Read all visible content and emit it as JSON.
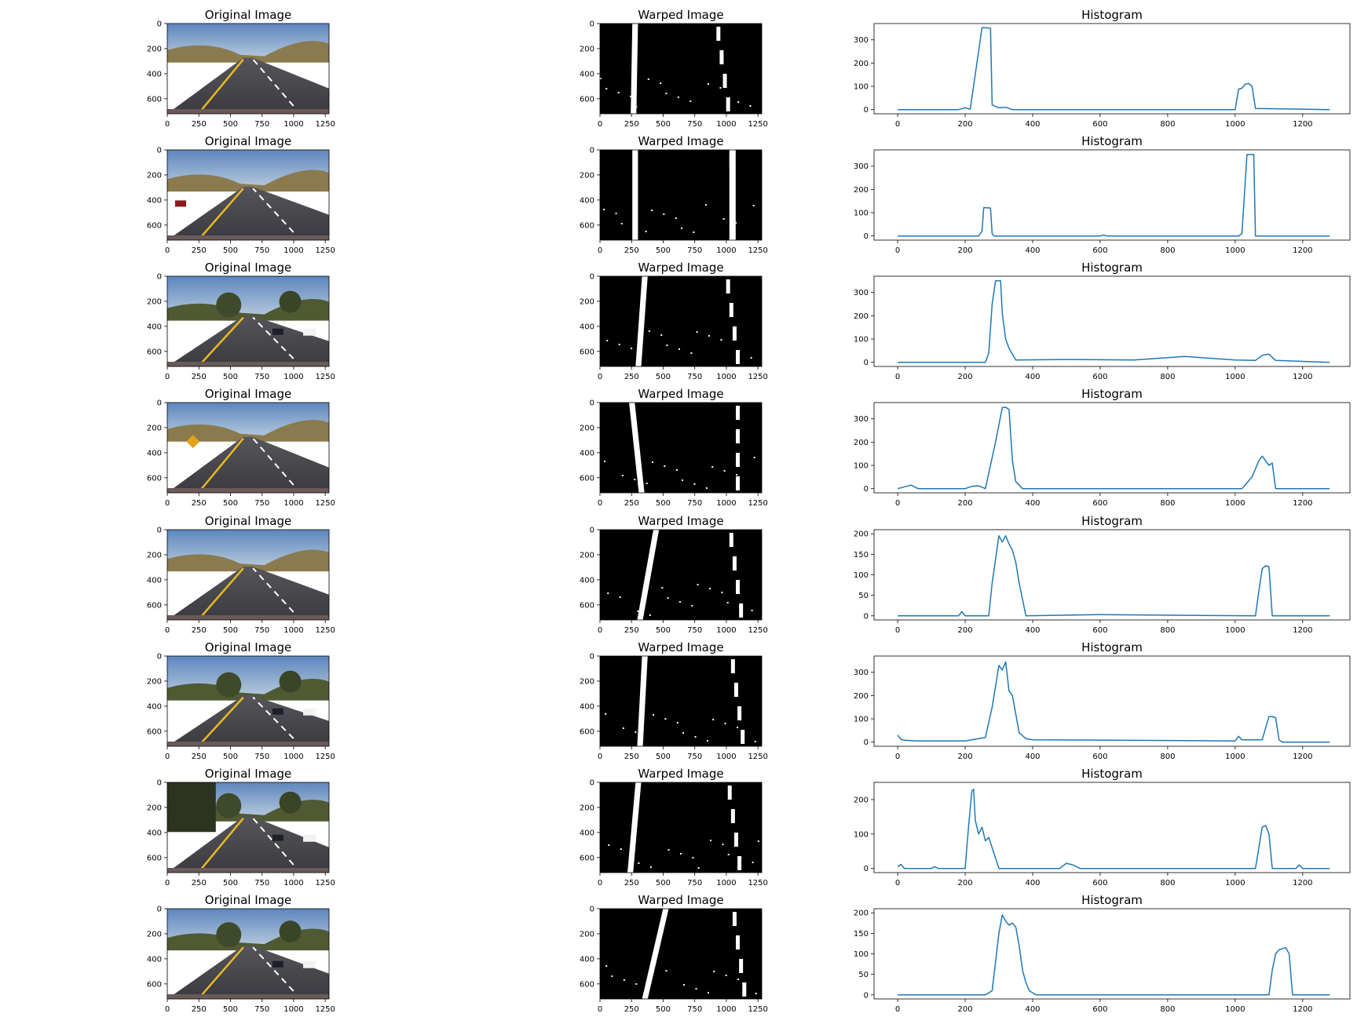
{
  "figure": {
    "columns": [
      {
        "title": "Original Image"
      },
      {
        "title": "Warped Image"
      },
      {
        "title": "Histogram"
      }
    ],
    "image_x_ticks": [
      "0",
      "250",
      "500",
      "750",
      "1000",
      "1250"
    ],
    "image_y_ticks": [
      "0",
      "200",
      "400",
      "600"
    ],
    "colors": {
      "line": "#1f77b4",
      "sky": "#7fa3cf",
      "road": "#4a4a50",
      "lane_yellow": "#e8b923"
    }
  },
  "chart_data": [
    {
      "type": "line",
      "title": "Histogram",
      "row": 1,
      "xlim": [
        -70,
        1340
      ],
      "ylim": [
        -18,
        370
      ],
      "xticks": [
        0,
        200,
        400,
        600,
        800,
        1000,
        1200
      ],
      "yticks": [
        0,
        100,
        200,
        300
      ],
      "series": [
        {
          "x": [
            0,
            180,
            200,
            215,
            250,
            255,
            275,
            280,
            300,
            320,
            340,
            1000,
            1010,
            1020,
            1030,
            1040,
            1050,
            1060,
            1280
          ],
          "y": [
            0,
            0,
            8,
            2,
            352,
            352,
            350,
            20,
            8,
            10,
            0,
            0,
            88,
            92,
            110,
            112,
            100,
            5,
            0
          ]
        }
      ]
    },
    {
      "type": "line",
      "title": "Histogram",
      "row": 2,
      "xlim": [
        -70,
        1340
      ],
      "ylim": [
        -18,
        370
      ],
      "xticks": [
        0,
        200,
        400,
        600,
        800,
        1000,
        1200
      ],
      "yticks": [
        0,
        100,
        200,
        300
      ],
      "series": [
        {
          "x": [
            0,
            240,
            250,
            255,
            275,
            280,
            285,
            600,
            610,
            620,
            1010,
            1020,
            1030,
            1035,
            1055,
            1060,
            1280
          ],
          "y": [
            0,
            0,
            20,
            122,
            120,
            10,
            0,
            0,
            4,
            0,
            0,
            10,
            240,
            350,
            350,
            0,
            0
          ],
          "raw": true
        }
      ]
    },
    {
      "type": "line",
      "title": "Histogram",
      "row": 3,
      "xlim": [
        -70,
        1340
      ],
      "ylim": [
        -18,
        370
      ],
      "xticks": [
        0,
        200,
        400,
        600,
        800,
        1000,
        1200
      ],
      "yticks": [
        0,
        100,
        200,
        300
      ],
      "series": [
        {
          "x": [
            0,
            260,
            270,
            280,
            290,
            305,
            310,
            320,
            330,
            350,
            500,
            700,
            850,
            1000,
            1060,
            1080,
            1100,
            1120,
            1280
          ],
          "y": [
            0,
            0,
            40,
            250,
            350,
            350,
            210,
            100,
            60,
            10,
            12,
            10,
            25,
            10,
            8,
            30,
            35,
            8,
            0
          ]
        }
      ]
    },
    {
      "type": "line",
      "title": "Histogram",
      "row": 4,
      "xlim": [
        -70,
        1340
      ],
      "ylim": [
        -18,
        370
      ],
      "xticks": [
        0,
        200,
        400,
        600,
        800,
        1000,
        1200
      ],
      "yticks": [
        0,
        100,
        200,
        300
      ],
      "series": [
        {
          "x": [
            0,
            40,
            60,
            200,
            220,
            240,
            260,
            290,
            310,
            320,
            330,
            340,
            350,
            370,
            1020,
            1050,
            1070,
            1080,
            1100,
            1110,
            1120,
            1280
          ],
          "y": [
            0,
            15,
            0,
            0,
            10,
            12,
            0,
            200,
            348,
            350,
            340,
            120,
            30,
            0,
            0,
            50,
            120,
            140,
            100,
            110,
            0,
            0
          ]
        }
      ]
    },
    {
      "type": "line",
      "title": "Histogram",
      "row": 5,
      "xlim": [
        -70,
        1340
      ],
      "ylim": [
        -10,
        210
      ],
      "xticks": [
        0,
        200,
        400,
        600,
        800,
        1000,
        1200
      ],
      "yticks": [
        0,
        50,
        100,
        150,
        200
      ],
      "series": [
        {
          "x": [
            0,
            180,
            190,
            200,
            270,
            280,
            300,
            310,
            320,
            330,
            340,
            350,
            360,
            380,
            600,
            1060,
            1070,
            1080,
            1090,
            1100,
            1110,
            1280
          ],
          "y": [
            0,
            0,
            10,
            0,
            0,
            80,
            195,
            180,
            195,
            175,
            160,
            130,
            80,
            0,
            3,
            0,
            60,
            115,
            122,
            120,
            0,
            0
          ]
        }
      ]
    },
    {
      "type": "line",
      "title": "Histogram",
      "row": 6,
      "xlim": [
        -70,
        1340
      ],
      "ylim": [
        -18,
        370
      ],
      "xticks": [
        0,
        200,
        400,
        600,
        800,
        1000,
        1200
      ],
      "yticks": [
        0,
        100,
        200,
        300
      ],
      "series": [
        {
          "x": [
            0,
            10,
            20,
            60,
            200,
            260,
            280,
            300,
            310,
            320,
            330,
            340,
            350,
            360,
            380,
            400,
            1000,
            1010,
            1020,
            1080,
            1100,
            1110,
            1120,
            1130,
            1140,
            1280
          ],
          "y": [
            30,
            12,
            8,
            5,
            5,
            20,
            150,
            330,
            310,
            345,
            220,
            200,
            120,
            40,
            15,
            10,
            5,
            25,
            10,
            10,
            110,
            110,
            105,
            10,
            0,
            0
          ]
        }
      ]
    },
    {
      "type": "line",
      "title": "Histogram",
      "row": 7,
      "xlim": [
        -70,
        1340
      ],
      "ylim": [
        -12,
        250
      ],
      "xticks": [
        0,
        200,
        400,
        600,
        800,
        1000,
        1200
      ],
      "yticks": [
        0,
        100,
        200
      ],
      "series": [
        {
          "x": [
            0,
            10,
            20,
            100,
            110,
            120,
            200,
            210,
            220,
            225,
            230,
            240,
            250,
            260,
            270,
            280,
            300,
            480,
            500,
            520,
            540,
            1060,
            1070,
            1080,
            1090,
            1100,
            1110,
            1180,
            1190,
            1200,
            1280
          ],
          "y": [
            5,
            12,
            0,
            0,
            5,
            0,
            0,
            120,
            225,
            230,
            140,
            100,
            120,
            80,
            90,
            60,
            0,
            0,
            15,
            10,
            0,
            0,
            60,
            120,
            125,
            100,
            0,
            0,
            10,
            0,
            0
          ]
        }
      ]
    },
    {
      "type": "line",
      "title": "Histogram",
      "row": 8,
      "xlim": [
        -70,
        1340
      ],
      "ylim": [
        -10,
        210
      ],
      "xticks": [
        0,
        200,
        400,
        600,
        800,
        1000,
        1200
      ],
      "yticks": [
        0,
        50,
        100,
        150,
        200
      ],
      "series": [
        {
          "x": [
            0,
            260,
            280,
            300,
            310,
            320,
            330,
            340,
            350,
            360,
            370,
            380,
            390,
            400,
            410,
            1100,
            1110,
            1120,
            1130,
            1150,
            1160,
            1170,
            1180,
            1280
          ],
          "y": [
            0,
            0,
            10,
            150,
            195,
            180,
            170,
            175,
            165,
            120,
            60,
            30,
            10,
            5,
            0,
            0,
            60,
            100,
            110,
            115,
            100,
            0,
            0,
            0
          ]
        }
      ]
    }
  ]
}
